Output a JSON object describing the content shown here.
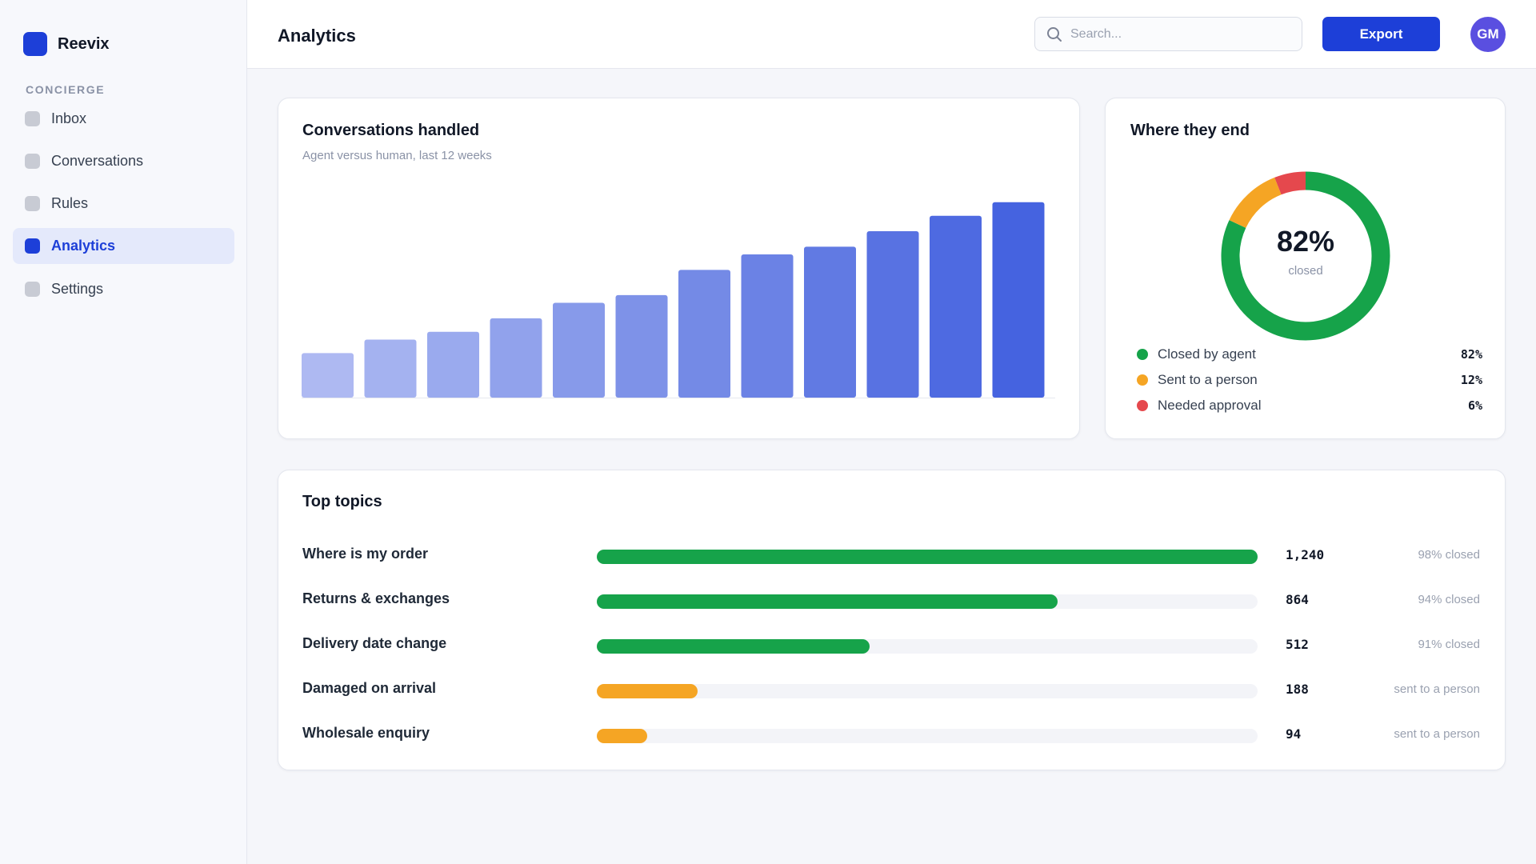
{
  "app": {
    "name": "Reevix"
  },
  "sidebar": {
    "section": "CONCIERGE",
    "items": [
      {
        "label": "Inbox",
        "active": false
      },
      {
        "label": "Conversations",
        "active": false
      },
      {
        "label": "Rules",
        "active": false
      },
      {
        "label": "Analytics",
        "active": true
      },
      {
        "label": "Settings",
        "active": false
      }
    ]
  },
  "header": {
    "title": "Analytics",
    "search_placeholder": "Search...",
    "export_label": "Export",
    "avatar_initials": "GM"
  },
  "conversations_card": {
    "title": "Conversations handled",
    "subtitle": "Agent versus human, last 12 weeks"
  },
  "chart_data": [
    {
      "type": "bar",
      "title": "Conversations handled",
      "subtitle": "Agent versus human, last 12 weeks",
      "categories": [
        "",
        "",
        "",
        "",
        "",
        "",
        "",
        "",
        "",
        "",
        "",
        ""
      ],
      "values": [
        23,
        30,
        34,
        41,
        49,
        53,
        66,
        74,
        78,
        86,
        94,
        101
      ],
      "ylim": [
        0,
        110
      ],
      "grid": false,
      "colors": [
        "#aeb9f2",
        "#a4b2f0",
        "#9aaaee",
        "#91a2ec",
        "#879aea",
        "#7e92e8",
        "#748ae6",
        "#6b82e5",
        "#617ae3",
        "#5872e2",
        "#4e6ae1",
        "#4563e0"
      ]
    },
    {
      "type": "pie",
      "title": "Where they end",
      "center_value": "82%",
      "center_label": "closed",
      "slices": [
        {
          "label": "Closed by agent",
          "value": 82,
          "display": "82%",
          "color": "#16a34a"
        },
        {
          "label": "Sent to a person",
          "value": 12,
          "display": "12%",
          "color": "#f5a524"
        },
        {
          "label": "Needed approval",
          "value": 6,
          "display": "6%",
          "color": "#e5484d"
        }
      ]
    }
  ],
  "donut_card": {
    "title": "Where they end"
  },
  "topics": {
    "title": "Top topics",
    "rows": [
      {
        "label": "Where is my order",
        "count": "1,240",
        "fraction": 1.0,
        "status": "98% closed",
        "color": "#16a34a"
      },
      {
        "label": "Returns & exchanges",
        "count": "864",
        "fraction": 0.697,
        "status": "94% closed",
        "color": "#16a34a"
      },
      {
        "label": "Delivery date change",
        "count": "512",
        "fraction": 0.413,
        "status": "91% closed",
        "color": "#16a34a"
      },
      {
        "label": "Damaged on arrival",
        "count": "188",
        "fraction": 0.152,
        "status": "sent to a person",
        "color": "#f5a524"
      },
      {
        "label": "Wholesale enquiry",
        "count": "94",
        "fraction": 0.076,
        "status": "sent to a person",
        "color": "#f5a524"
      }
    ]
  }
}
